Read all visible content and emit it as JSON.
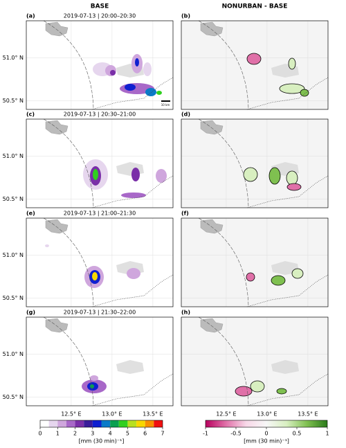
{
  "columns": [
    "BASE",
    "NONURBAN - BASE"
  ],
  "panels": [
    {
      "label": "(a)",
      "title": "2019-07-13 | 20:00–20:30"
    },
    {
      "label": "(b)"
    },
    {
      "label": "(c)",
      "title": "2019-07-13 | 20:30–21:00"
    },
    {
      "label": "(d)"
    },
    {
      "label": "(e)",
      "title": "2019-07-13 | 21:00–21:30"
    },
    {
      "label": "(f)"
    },
    {
      "label": "(g)",
      "title": "2019-07-13 | 21:30–22:00"
    },
    {
      "label": "(h)"
    }
  ],
  "lat_ticks": [
    {
      "value": 51.0,
      "label": "51.0° N"
    },
    {
      "value": 50.5,
      "label": "50.5° N"
    }
  ],
  "lon_ticks": [
    {
      "value": 12.5,
      "label": "12.5° E"
    },
    {
      "value": 13.0,
      "label": "13.0° E"
    },
    {
      "value": 13.5,
      "label": "13.5° E"
    }
  ],
  "scale_bar": "10 km",
  "colorbars": [
    {
      "ticks": [
        0,
        1,
        2,
        3,
        4,
        5,
        6,
        7
      ],
      "label": "[mm (30 min)⁻¹]",
      "colors": [
        "#ffffff",
        "#e6d6ee",
        "#cfa6dd",
        "#a868c8",
        "#7a2fa8",
        "#3a1c9a",
        "#1020d0",
        "#0a7ac8",
        "#0aa050",
        "#30d020",
        "#b8e020",
        "#f8d800",
        "#f89000",
        "#f01010"
      ]
    },
    {
      "ticks": [
        -1,
        -0.5,
        0,
        0.5,
        1
      ],
      "label": "[mm (30 min)⁻¹]",
      "colors": [
        "#b8005e",
        "#e070a8",
        "#f8d8e8",
        "#f7f7f7",
        "#d8efc0",
        "#7fc050",
        "#2a7a1a"
      ]
    }
  ]
}
